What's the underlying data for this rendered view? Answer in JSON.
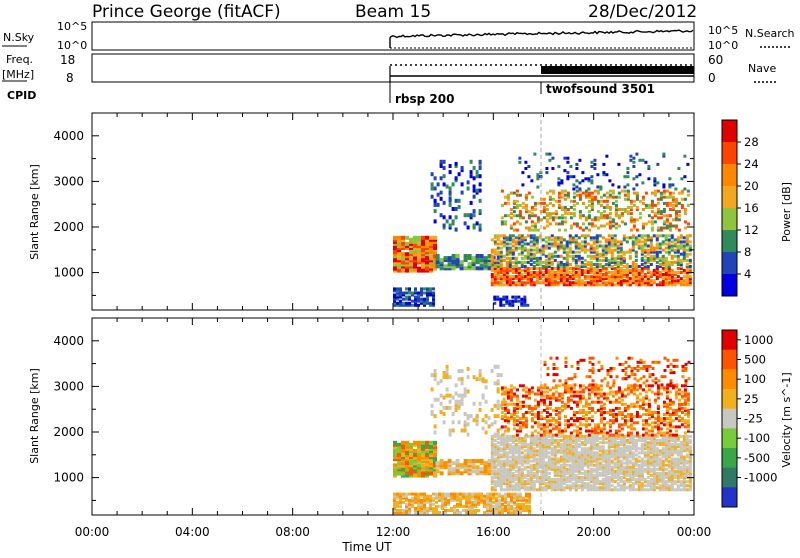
{
  "header": {
    "station": "Prince George (fitACF)",
    "beam": "Beam 15",
    "date": "28/Dec/2012"
  },
  "top_panels": {
    "nsky_label": "N.Sky",
    "nsky_ticks": [
      "10^5",
      "10^0"
    ],
    "nsearch_label": "N.Search",
    "nsearch_ticks": [
      "10^5",
      "10^0"
    ],
    "freq_label_1": "Freq.",
    "freq_label_2": "[MHz]",
    "freq_ticks": [
      "18",
      "8"
    ],
    "nave_label": "Nave",
    "nave_ticks": [
      "60",
      "0"
    ],
    "cpid_label": "CPID",
    "cpid_entries": [
      {
        "name": "rbsp 200",
        "start_hour": 12.0
      },
      {
        "name": "twofsound 3501",
        "start_hour": 18.0
      }
    ]
  },
  "x_axis": {
    "label": "Time UT",
    "ticks": [
      "00:00",
      "04:00",
      "08:00",
      "12:00",
      "16:00",
      "20:00",
      "00:00"
    ],
    "range_hours": [
      0,
      24
    ]
  },
  "chart_data": [
    {
      "type": "heatmap",
      "name": "power",
      "ylabel": "Slant Range [km]",
      "yticks": [
        "4000",
        "3000",
        "2000",
        "1000"
      ],
      "ylim": [
        180,
        4500
      ],
      "colorbar": {
        "label": "Power [dB]",
        "ticks": [
          "28",
          "24",
          "20",
          "16",
          "12",
          "8",
          "4"
        ],
        "range": [
          0,
          32
        ],
        "colors": [
          "#0000e0",
          "#2244bb",
          "#2f8a5c",
          "#8fc53c",
          "#f2a622",
          "#ff8800",
          "#ff4400",
          "#e00000"
        ]
      },
      "data_start_hour": 12.0
    },
    {
      "type": "heatmap",
      "name": "velocity",
      "ylabel": "Slant Range [km]",
      "yticks": [
        "4000",
        "3000",
        "2000",
        "1000"
      ],
      "ylim": [
        180,
        4500
      ],
      "colorbar": {
        "label": "Velocity [m s^-1]",
        "ticks": [
          "1000",
          "500",
          "100",
          "25",
          "-25",
          "-100",
          "-500",
          "-1000"
        ],
        "colors": [
          "#2233cc",
          "#2f7a66",
          "#3aa64a",
          "#78cc3a",
          "#c8c8c0",
          "#f0b020",
          "#ff8c00",
          "#ff5500",
          "#e00000"
        ]
      },
      "data_start_hour": 12.0
    }
  ]
}
